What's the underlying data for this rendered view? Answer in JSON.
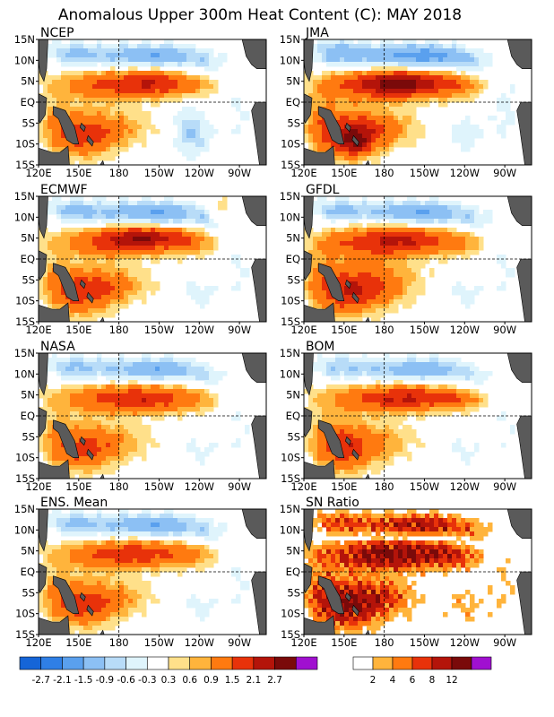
{
  "title": "Anomalous Upper 300m Heat Content (C): MAY 2018",
  "chart_data": [
    {
      "type": "heatmap",
      "panel_title": "NCEP",
      "x_ticks": [
        "120E",
        "150E",
        "180",
        "150W",
        "120W",
        "90W"
      ],
      "y_ticks": [
        "15N",
        "10N",
        "5N",
        "EQ",
        "5S",
        "10S",
        "15S"
      ],
      "x_range_lon": [
        120,
        290
      ],
      "y_range_lat": [
        -15,
        15
      ],
      "values_desc": "warm anomaly band along 0-8N from 150E to 130W (0.9-1.5 C), warm 5S-12S near 150E-180; cool -0.3 to -1.5 C along 8N-13N"
    },
    {
      "type": "heatmap",
      "panel_title": "JMA",
      "x_ticks": [
        "120E",
        "150E",
        "180",
        "150W",
        "120W",
        "90W"
      ],
      "y_ticks": [
        "15N",
        "10N",
        "5N",
        "EQ",
        "5S",
        "10S",
        "15S"
      ],
      "x_range_lon": [
        120,
        290
      ],
      "y_range_lat": [
        -15,
        15
      ],
      "values_desc": "strong warm band 0-8N (1.5-2.1 C), warm 5S-12S west of 170W with 2.1 C core near 160E 10S; cool band 8N-13N"
    },
    {
      "type": "heatmap",
      "panel_title": "ECMWF",
      "x_ticks": [
        "120E",
        "150E",
        "180",
        "150W",
        "120W",
        "90W"
      ],
      "y_ticks": [
        "15N",
        "10N",
        "5N",
        "EQ",
        "5S",
        "10S",
        "15S"
      ],
      "x_range_lon": [
        120,
        290
      ],
      "y_range_lat": [
        -15,
        15
      ],
      "values_desc": "warm band 2N-7N with 1.5-2.1 C cores 170W-130W; warm 0-12S west of 170W; cool north of 8N"
    },
    {
      "type": "heatmap",
      "panel_title": "GFDL",
      "x_ticks": [
        "120E",
        "150E",
        "180",
        "150W",
        "120W",
        "90W"
      ],
      "y_ticks": [
        "15N",
        "10N",
        "5N",
        "EQ",
        "5S",
        "10S",
        "15S"
      ],
      "x_range_lon": [
        120,
        290
      ],
      "y_range_lat": [
        -15,
        15
      ],
      "values_desc": "broad warm region 0-8N and 5S-12S (0.9-1.5 C), cool band 8N-13N"
    },
    {
      "type": "heatmap",
      "panel_title": "NASA",
      "x_ticks": [
        "120E",
        "150E",
        "180",
        "150W",
        "120W",
        "90W"
      ],
      "y_ticks": [
        "15N",
        "10N",
        "5N",
        "EQ",
        "5S",
        "10S",
        "15S"
      ],
      "x_range_lon": [
        120,
        290
      ],
      "y_range_lat": [
        -15,
        15
      ],
      "values_desc": "warm band 0-6N (0.9-1.5 C) from 160E to 130W, warm 3S-12S near 150E-180; cool 9N-14N"
    },
    {
      "type": "heatmap",
      "panel_title": "BOM",
      "x_ticks": [
        "120E",
        "150E",
        "180",
        "150W",
        "120W",
        "90W"
      ],
      "y_ticks": [
        "15N",
        "10N",
        "5N",
        "EQ",
        "5S",
        "10S",
        "15S"
      ],
      "x_range_lon": [
        120,
        290
      ],
      "y_range_lat": [
        -15,
        15
      ],
      "values_desc": "narrow warm band 2N-7N (0.9-1.5 C), warm 0-12S west of 170E; cool patches north of 9N"
    },
    {
      "type": "heatmap",
      "panel_title": "ENS. Mean",
      "x_ticks": [
        "120E",
        "150E",
        "180",
        "150W",
        "120W",
        "90W"
      ],
      "y_ticks": [
        "15N",
        "10N",
        "5N",
        "EQ",
        "5S",
        "10S",
        "15S"
      ],
      "x_range_lon": [
        120,
        290
      ],
      "y_range_lat": [
        -15,
        15
      ],
      "values_desc": "ensemble mean: warm 0.9-1.5 C band 0-7N and 3S-12S; cool -0.3 to -1.5 C 8N-13N"
    },
    {
      "type": "heatmap",
      "panel_title": "SN Ratio",
      "x_ticks": [
        "120E",
        "150E",
        "180",
        "150W",
        "120W",
        "90W"
      ],
      "y_ticks": [
        "15N",
        "10N",
        "5N",
        "EQ",
        "5S",
        "10S",
        "15S"
      ],
      "x_range_lon": [
        120,
        290
      ],
      "y_range_lat": [
        -15,
        15
      ],
      "values_desc": "signal-to-noise ratio: values above 12 concentrated 0-8N and 5S-12S between 150E and 130W"
    }
  ],
  "anomaly_colorbar": {
    "labels": [
      "-2.7",
      "-2.1",
      "-1.5",
      "-0.9",
      "-0.6",
      "-0.3",
      "0.3",
      "0.6",
      "0.9",
      "1.5",
      "2.1",
      "2.7"
    ],
    "colors": [
      "#1565d8",
      "#2f7fe6",
      "#5aa0ee",
      "#8cc0f4",
      "#b8dcf8",
      "#dff4fc",
      "#ffffff",
      "#ffe08a",
      "#ffb43c",
      "#ff7a10",
      "#e8320a",
      "#b4140a",
      "#7a0a0a",
      "#a010d0"
    ]
  },
  "ratio_colorbar": {
    "labels": [
      "2",
      "4",
      "6",
      "8",
      "12"
    ],
    "colors": [
      "#ffffff",
      "#ffb43c",
      "#ff7a10",
      "#e8320a",
      "#b4140a",
      "#7a0a0a",
      "#a010d0"
    ]
  },
  "colors": {
    "land": "#5a5a5a",
    "frame": "#000000",
    "guide": "#000000"
  }
}
